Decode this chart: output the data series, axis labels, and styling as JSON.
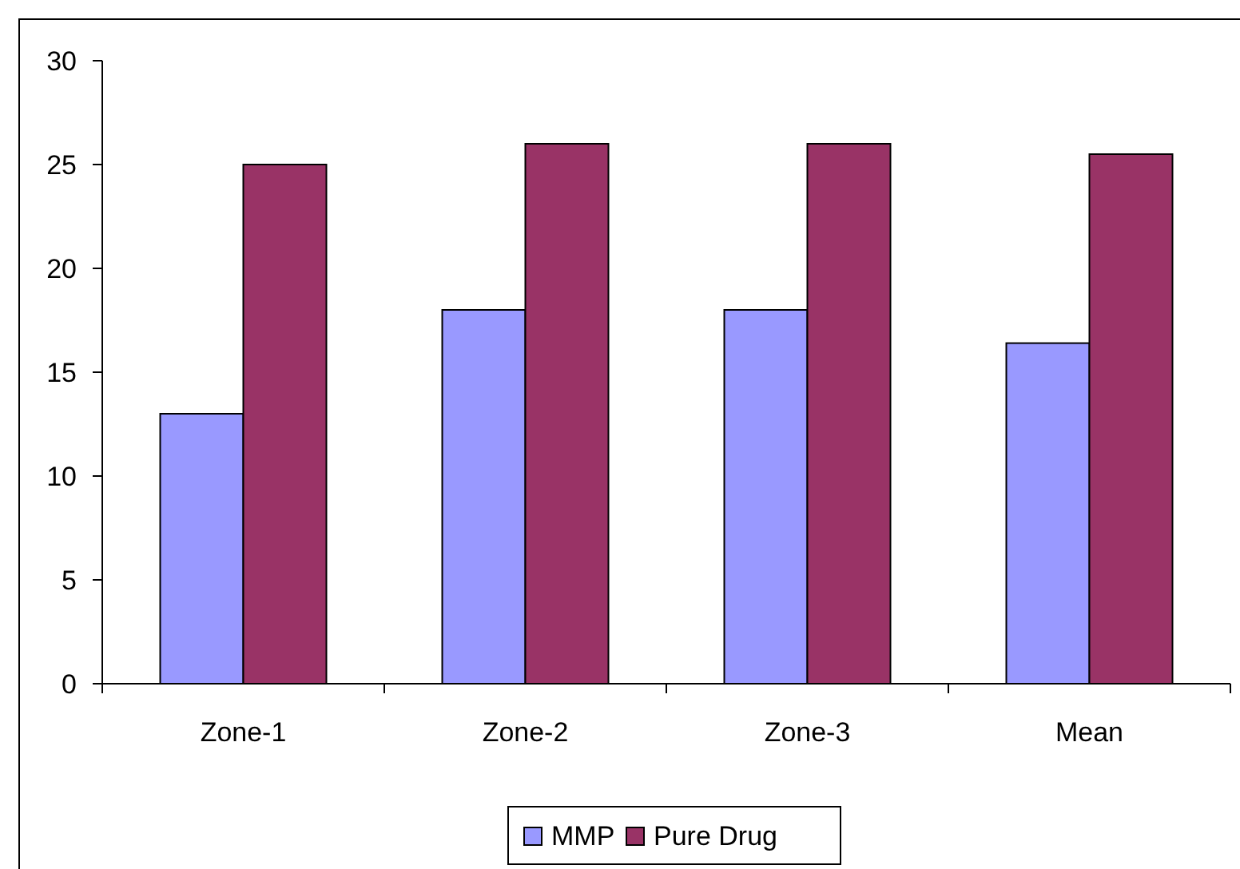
{
  "chart_data": {
    "type": "bar",
    "categories": [
      "Zone-1",
      "Zone-2",
      "Zone-3",
      "Mean"
    ],
    "series": [
      {
        "name": "MMP",
        "color": "#9999ff",
        "values": [
          13,
          18,
          18,
          16.4
        ]
      },
      {
        "name": "Pure Drug",
        "color": "#993366",
        "values": [
          25,
          26,
          26,
          25.5
        ]
      }
    ],
    "ylim": [
      0,
      30
    ],
    "yticks": [
      0,
      5,
      10,
      15,
      20,
      25,
      30
    ],
    "grid": false,
    "legend": "bottom"
  }
}
